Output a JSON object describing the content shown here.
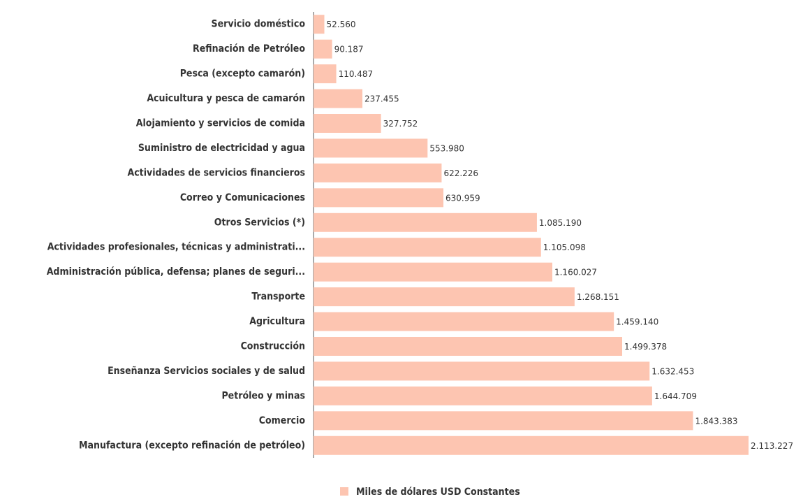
{
  "chart_data": {
    "type": "bar",
    "orientation": "horizontal",
    "categories": [
      "Servicio doméstico",
      "Refinación de Petróleo",
      "Pesca (excepto camarón)",
      "Acuicultura y pesca de camarón",
      "Alojamiento y servicios de comida",
      "Suministro de electricidad y agua",
      "Actividades de servicios financieros",
      "Correo y Comunicaciones",
      "Otros Servicios (*)",
      "Actividades profesionales, técnicas y administrati...",
      "Administración pública, defensa; planes de seguri...",
      "Transporte",
      "Agricultura",
      "Construcción",
      "Enseñanza Servicios sociales y de salud",
      "Petróleo y minas",
      "Comercio",
      "Manufactura (excepto refinación de petróleo)"
    ],
    "series": [
      {
        "name": "Miles de dólares USD Constantes",
        "color": "#fdc5b1",
        "values": [
          52560,
          90187,
          110487,
          237455,
          327752,
          553980,
          622226,
          630959,
          1085190,
          1105098,
          1160027,
          1268151,
          1459140,
          1499378,
          1632453,
          1644709,
          1843383,
          2113227
        ],
        "value_labels": [
          "52.560",
          "90.187",
          "110.487",
          "237.455",
          "327.752",
          "553.980",
          "622.226",
          "630.959",
          "1.085.190",
          "1.105.098",
          "1.160.027",
          "1.268.151",
          "1.459.140",
          "1.499.378",
          "1.632.453",
          "1.644.709",
          "1.843.383",
          "2.113.227"
        ]
      }
    ]
  }
}
